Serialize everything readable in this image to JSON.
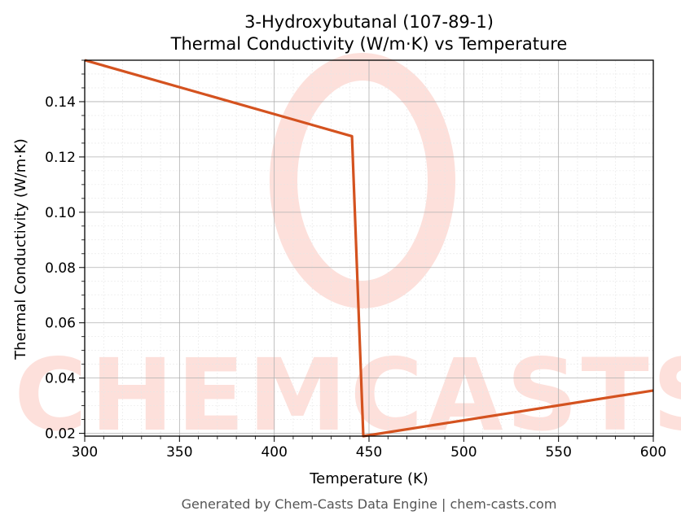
{
  "chart_data": {
    "type": "line",
    "title_line1": "3-Hydroxybutanal (107-89-1)",
    "title_line2": "Thermal Conductivity (W/m·K) vs Temperature",
    "xlabel": "Temperature (K)",
    "ylabel": "Thermal Conductivity (W/m·K)",
    "xlim": [
      300,
      600
    ],
    "ylim": [
      0.019,
      0.155
    ],
    "xticks": [
      300,
      350,
      400,
      450,
      500,
      550,
      600
    ],
    "xtick_labels": [
      "300",
      "350",
      "400",
      "450",
      "500",
      "550",
      "600"
    ],
    "yticks": [
      0.02,
      0.04,
      0.06,
      0.08,
      0.1,
      0.12,
      0.14
    ],
    "ytick_labels": [
      "0.02",
      "0.04",
      "0.06",
      "0.08",
      "0.10",
      "0.12",
      "0.14"
    ],
    "grid": true,
    "series": [
      {
        "color": "#d4521f",
        "x": [
          300,
          441,
          447,
          600
        ],
        "y": [
          0.155,
          0.1275,
          0.019,
          0.0355
        ]
      }
    ]
  },
  "watermark": {
    "text": "CHEMCASTS",
    "color": "#fde0db"
  },
  "footer": "Generated by Chem-Casts Data Engine | chem-casts.com"
}
